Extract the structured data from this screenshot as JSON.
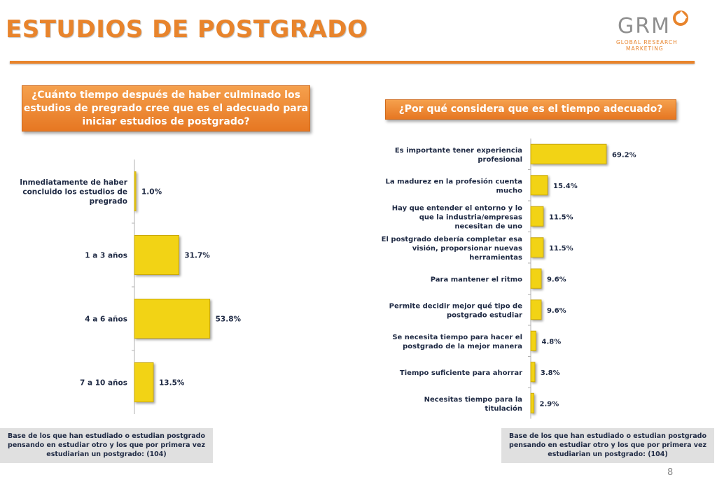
{
  "header": {
    "title": "ESTUDIOS DE POSTGRADO"
  },
  "logo": {
    "text": "GRM",
    "line1": "GLOBAL RESEARCH",
    "line2": "MARKETING",
    "icon": "swirl-logo-icon"
  },
  "colors": {
    "accent": "#e8842c",
    "bar": "#f2d315",
    "bar_dark": "#c9a80a",
    "label": "#1f2a44"
  },
  "left_question": "¿Cuánto tiempo después de haber culminado los estudios de pregrado cree que es el adecuado para iniciar estudios de postgrado?",
  "right_question": "¿Por qué considera que es el tiempo adecuado?",
  "base_note_left": "Base de los que han estudiado o estudian postgrado pensando en estudiar otro y los que por primera vez estudiarian un postgrado: (104)",
  "base_note_right": "Base de los que han estudiado o estudian postgrado pensando en estudiar otro y los que por primera vez estudiarian un postgrado: (104)",
  "page_number": "8",
  "chart_data": [
    {
      "type": "bar",
      "orientation": "horizontal",
      "categories": [
        "Inmediatamente de haber concluido los estudios de pregrado",
        "1 a 3 años",
        "4 a 6 años",
        "7 a 10 años"
      ],
      "values": [
        1.0,
        31.7,
        53.8,
        13.5
      ],
      "value_labels": [
        "1.0%",
        "31.7%",
        "53.8%",
        "13.5%"
      ],
      "xlim": [
        0,
        100
      ]
    },
    {
      "type": "bar",
      "orientation": "horizontal",
      "categories": [
        "Es importante tener experiencia profesional",
        "La madurez en la profesión cuenta mucho",
        "Hay que entender el entorno y lo que la industria/empresas necesitan de uno",
        "El postgrado debería completar esa visión, proporsionar nuevas herramientas",
        "Para mantener el ritmo",
        "Permite decidir mejor qué tipo de postgrado estudiar",
        "Se necesita tiempo para hacer el postgrado de la mejor manera",
        "Tiempo suficiente para ahorrar",
        "Necesitas tiempo para la titulación"
      ],
      "values": [
        69.2,
        15.4,
        11.5,
        11.5,
        9.6,
        9.6,
        4.8,
        3.8,
        2.9
      ],
      "value_labels": [
        "69.2%",
        "15.4%",
        "11.5%",
        "11.5%",
        "9.6%",
        "9.6%",
        "4.8%",
        "3.8%",
        "2.9%"
      ],
      "xlim": [
        0,
        100
      ]
    }
  ]
}
